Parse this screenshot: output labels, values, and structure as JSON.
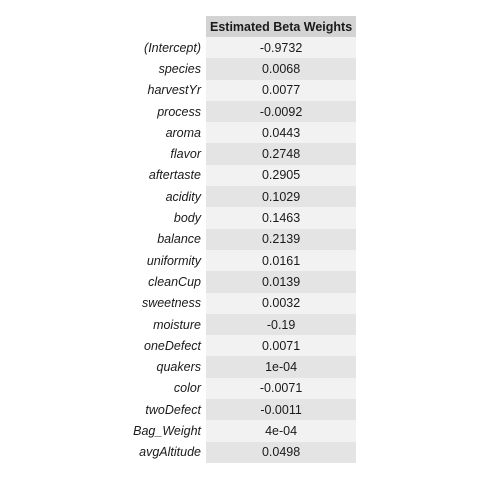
{
  "table": {
    "header": "Estimated Beta Weights",
    "rows": [
      {
        "name": "(Intercept)",
        "value": "-0.9732"
      },
      {
        "name": "species",
        "value": "0.0068"
      },
      {
        "name": "harvestYr",
        "value": "0.0077"
      },
      {
        "name": "process",
        "value": "-0.0092"
      },
      {
        "name": "aroma",
        "value": "0.0443"
      },
      {
        "name": "flavor",
        "value": "0.2748"
      },
      {
        "name": "aftertaste",
        "value": "0.2905"
      },
      {
        "name": "acidity",
        "value": "0.1029"
      },
      {
        "name": "body",
        "value": "0.1463"
      },
      {
        "name": "balance",
        "value": "0.2139"
      },
      {
        "name": "uniformity",
        "value": "0.0161"
      },
      {
        "name": "cleanCup",
        "value": "0.0139"
      },
      {
        "name": "sweetness",
        "value": "0.0032"
      },
      {
        "name": "moisture",
        "value": "-0.19"
      },
      {
        "name": "oneDefect",
        "value": "0.0071"
      },
      {
        "name": "quakers",
        "value": "1e-04"
      },
      {
        "name": "color",
        "value": "-0.0071"
      },
      {
        "name": "twoDefect",
        "value": "-0.0011"
      },
      {
        "name": "Bag_Weight",
        "value": "4e-04"
      },
      {
        "name": "avgAltitude",
        "value": "0.0498"
      }
    ]
  }
}
